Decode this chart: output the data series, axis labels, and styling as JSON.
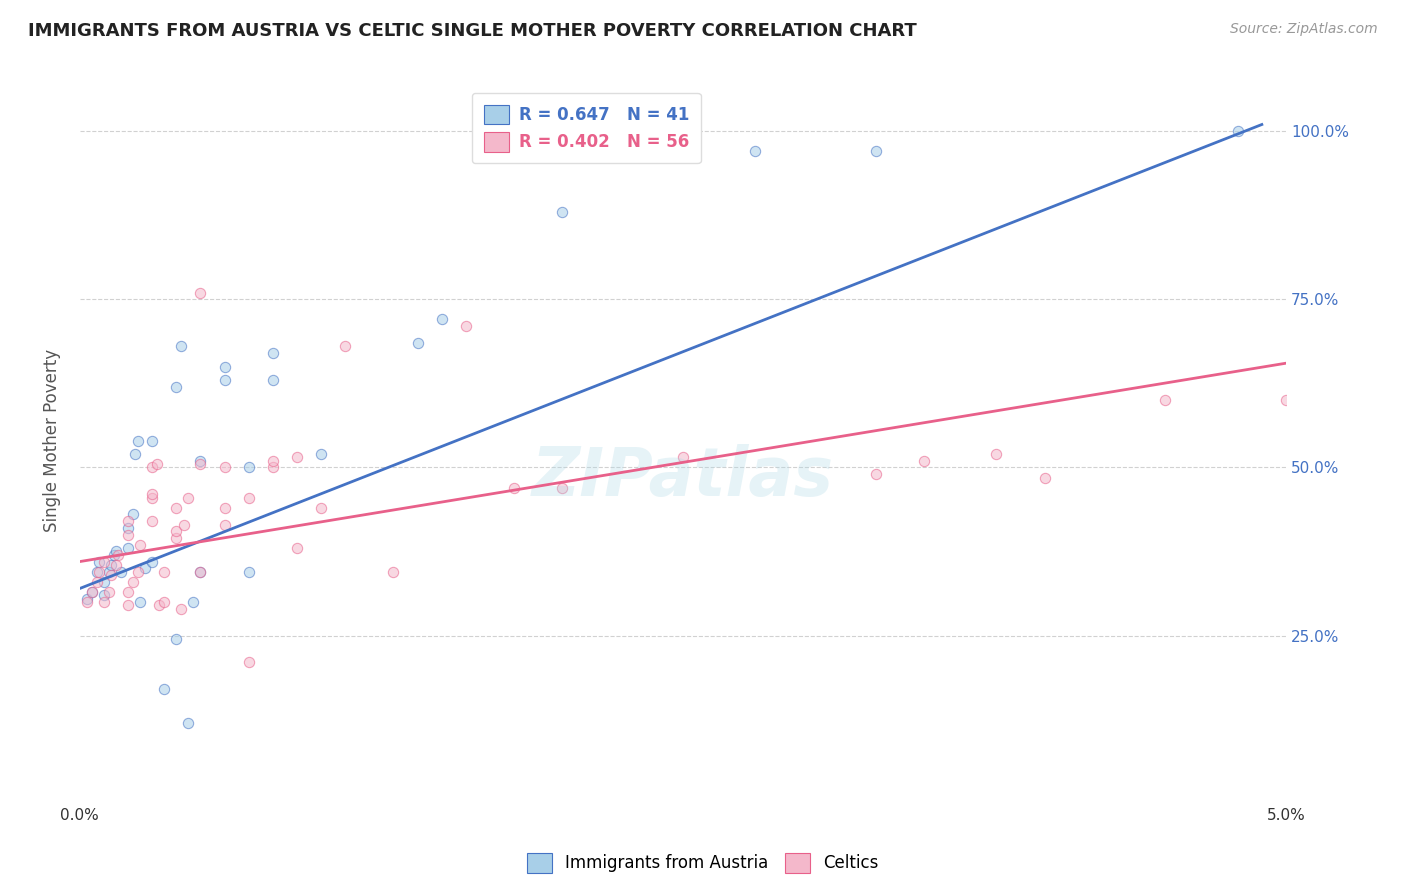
{
  "title": "IMMIGRANTS FROM AUSTRIA VS CELTIC SINGLE MOTHER POVERTY CORRELATION CHART",
  "source": "Source: ZipAtlas.com",
  "ylabel": "Single Mother Poverty",
  "legend_blue_r": "R = 0.647",
  "legend_blue_n": "N = 41",
  "legend_pink_r": "R = 0.402",
  "legend_pink_n": "N = 56",
  "legend_blue_label": "Immigrants from Austria",
  "legend_pink_label": "Celtics",
  "watermark": "ZIPatlas",
  "blue_scatter": [
    [
      0.0003,
      0.305
    ],
    [
      0.0005,
      0.315
    ],
    [
      0.0007,
      0.345
    ],
    [
      0.0008,
      0.36
    ],
    [
      0.001,
      0.31
    ],
    [
      0.001,
      0.33
    ],
    [
      0.0012,
      0.345
    ],
    [
      0.0013,
      0.355
    ],
    [
      0.0014,
      0.37
    ],
    [
      0.0015,
      0.375
    ],
    [
      0.0017,
      0.345
    ],
    [
      0.002,
      0.38
    ],
    [
      0.002,
      0.41
    ],
    [
      0.0022,
      0.43
    ],
    [
      0.0023,
      0.52
    ],
    [
      0.0024,
      0.54
    ],
    [
      0.0025,
      0.3
    ],
    [
      0.0027,
      0.35
    ],
    [
      0.003,
      0.36
    ],
    [
      0.003,
      0.54
    ],
    [
      0.0035,
      0.17
    ],
    [
      0.004,
      0.245
    ],
    [
      0.004,
      0.62
    ],
    [
      0.0042,
      0.68
    ],
    [
      0.0045,
      0.12
    ],
    [
      0.0047,
      0.3
    ],
    [
      0.005,
      0.345
    ],
    [
      0.005,
      0.51
    ],
    [
      0.006,
      0.63
    ],
    [
      0.006,
      0.65
    ],
    [
      0.007,
      0.345
    ],
    [
      0.007,
      0.5
    ],
    [
      0.008,
      0.63
    ],
    [
      0.008,
      0.67
    ],
    [
      0.01,
      0.52
    ],
    [
      0.014,
      0.685
    ],
    [
      0.015,
      0.72
    ],
    [
      0.02,
      0.88
    ],
    [
      0.028,
      0.97
    ],
    [
      0.033,
      0.97
    ],
    [
      0.048,
      1.0
    ]
  ],
  "pink_scatter": [
    [
      0.0003,
      0.3
    ],
    [
      0.0005,
      0.315
    ],
    [
      0.0007,
      0.33
    ],
    [
      0.0008,
      0.345
    ],
    [
      0.001,
      0.36
    ],
    [
      0.001,
      0.3
    ],
    [
      0.0012,
      0.315
    ],
    [
      0.0013,
      0.34
    ],
    [
      0.0015,
      0.355
    ],
    [
      0.0016,
      0.37
    ],
    [
      0.002,
      0.4
    ],
    [
      0.002,
      0.42
    ],
    [
      0.002,
      0.295
    ],
    [
      0.002,
      0.315
    ],
    [
      0.0022,
      0.33
    ],
    [
      0.0024,
      0.345
    ],
    [
      0.0025,
      0.385
    ],
    [
      0.003,
      0.42
    ],
    [
      0.003,
      0.455
    ],
    [
      0.003,
      0.46
    ],
    [
      0.003,
      0.5
    ],
    [
      0.0032,
      0.505
    ],
    [
      0.0033,
      0.295
    ],
    [
      0.0035,
      0.3
    ],
    [
      0.0035,
      0.345
    ],
    [
      0.004,
      0.395
    ],
    [
      0.004,
      0.405
    ],
    [
      0.004,
      0.44
    ],
    [
      0.0042,
      0.29
    ],
    [
      0.0043,
      0.415
    ],
    [
      0.0045,
      0.455
    ],
    [
      0.005,
      0.505
    ],
    [
      0.005,
      0.76
    ],
    [
      0.005,
      0.345
    ],
    [
      0.006,
      0.415
    ],
    [
      0.006,
      0.44
    ],
    [
      0.006,
      0.5
    ],
    [
      0.007,
      0.455
    ],
    [
      0.007,
      0.21
    ],
    [
      0.008,
      0.5
    ],
    [
      0.008,
      0.51
    ],
    [
      0.009,
      0.515
    ],
    [
      0.009,
      0.38
    ],
    [
      0.01,
      0.44
    ],
    [
      0.011,
      0.68
    ],
    [
      0.013,
      0.345
    ],
    [
      0.016,
      0.71
    ],
    [
      0.018,
      0.47
    ],
    [
      0.02,
      0.47
    ],
    [
      0.025,
      0.515
    ],
    [
      0.033,
      0.49
    ],
    [
      0.035,
      0.51
    ],
    [
      0.038,
      0.52
    ],
    [
      0.04,
      0.485
    ],
    [
      0.045,
      0.6
    ],
    [
      0.05,
      0.6
    ]
  ],
  "blue_line_x": [
    0.0,
    0.049
  ],
  "blue_line_y": [
    0.32,
    1.01
  ],
  "pink_line_x": [
    0.0,
    0.05
  ],
  "pink_line_y": [
    0.36,
    0.655
  ],
  "blue_color": "#a8cfe8",
  "pink_color": "#f4b8cb",
  "blue_line_color": "#4472c4",
  "pink_line_color": "#e8608a",
  "scatter_alpha": 0.55,
  "scatter_size": 55,
  "xlim": [
    0.0,
    0.05
  ],
  "ylim": [
    0.0,
    1.08
  ],
  "ytick_positions": [
    0.25,
    0.5,
    0.75,
    1.0
  ],
  "ytick_labels": [
    "25.0%",
    "50.0%",
    "75.0%",
    "100.0%"
  ],
  "xtick_show_positions": [
    0.0,
    0.01,
    0.02,
    0.03,
    0.04,
    0.05
  ],
  "background": "#ffffff",
  "grid_color": "#cccccc"
}
